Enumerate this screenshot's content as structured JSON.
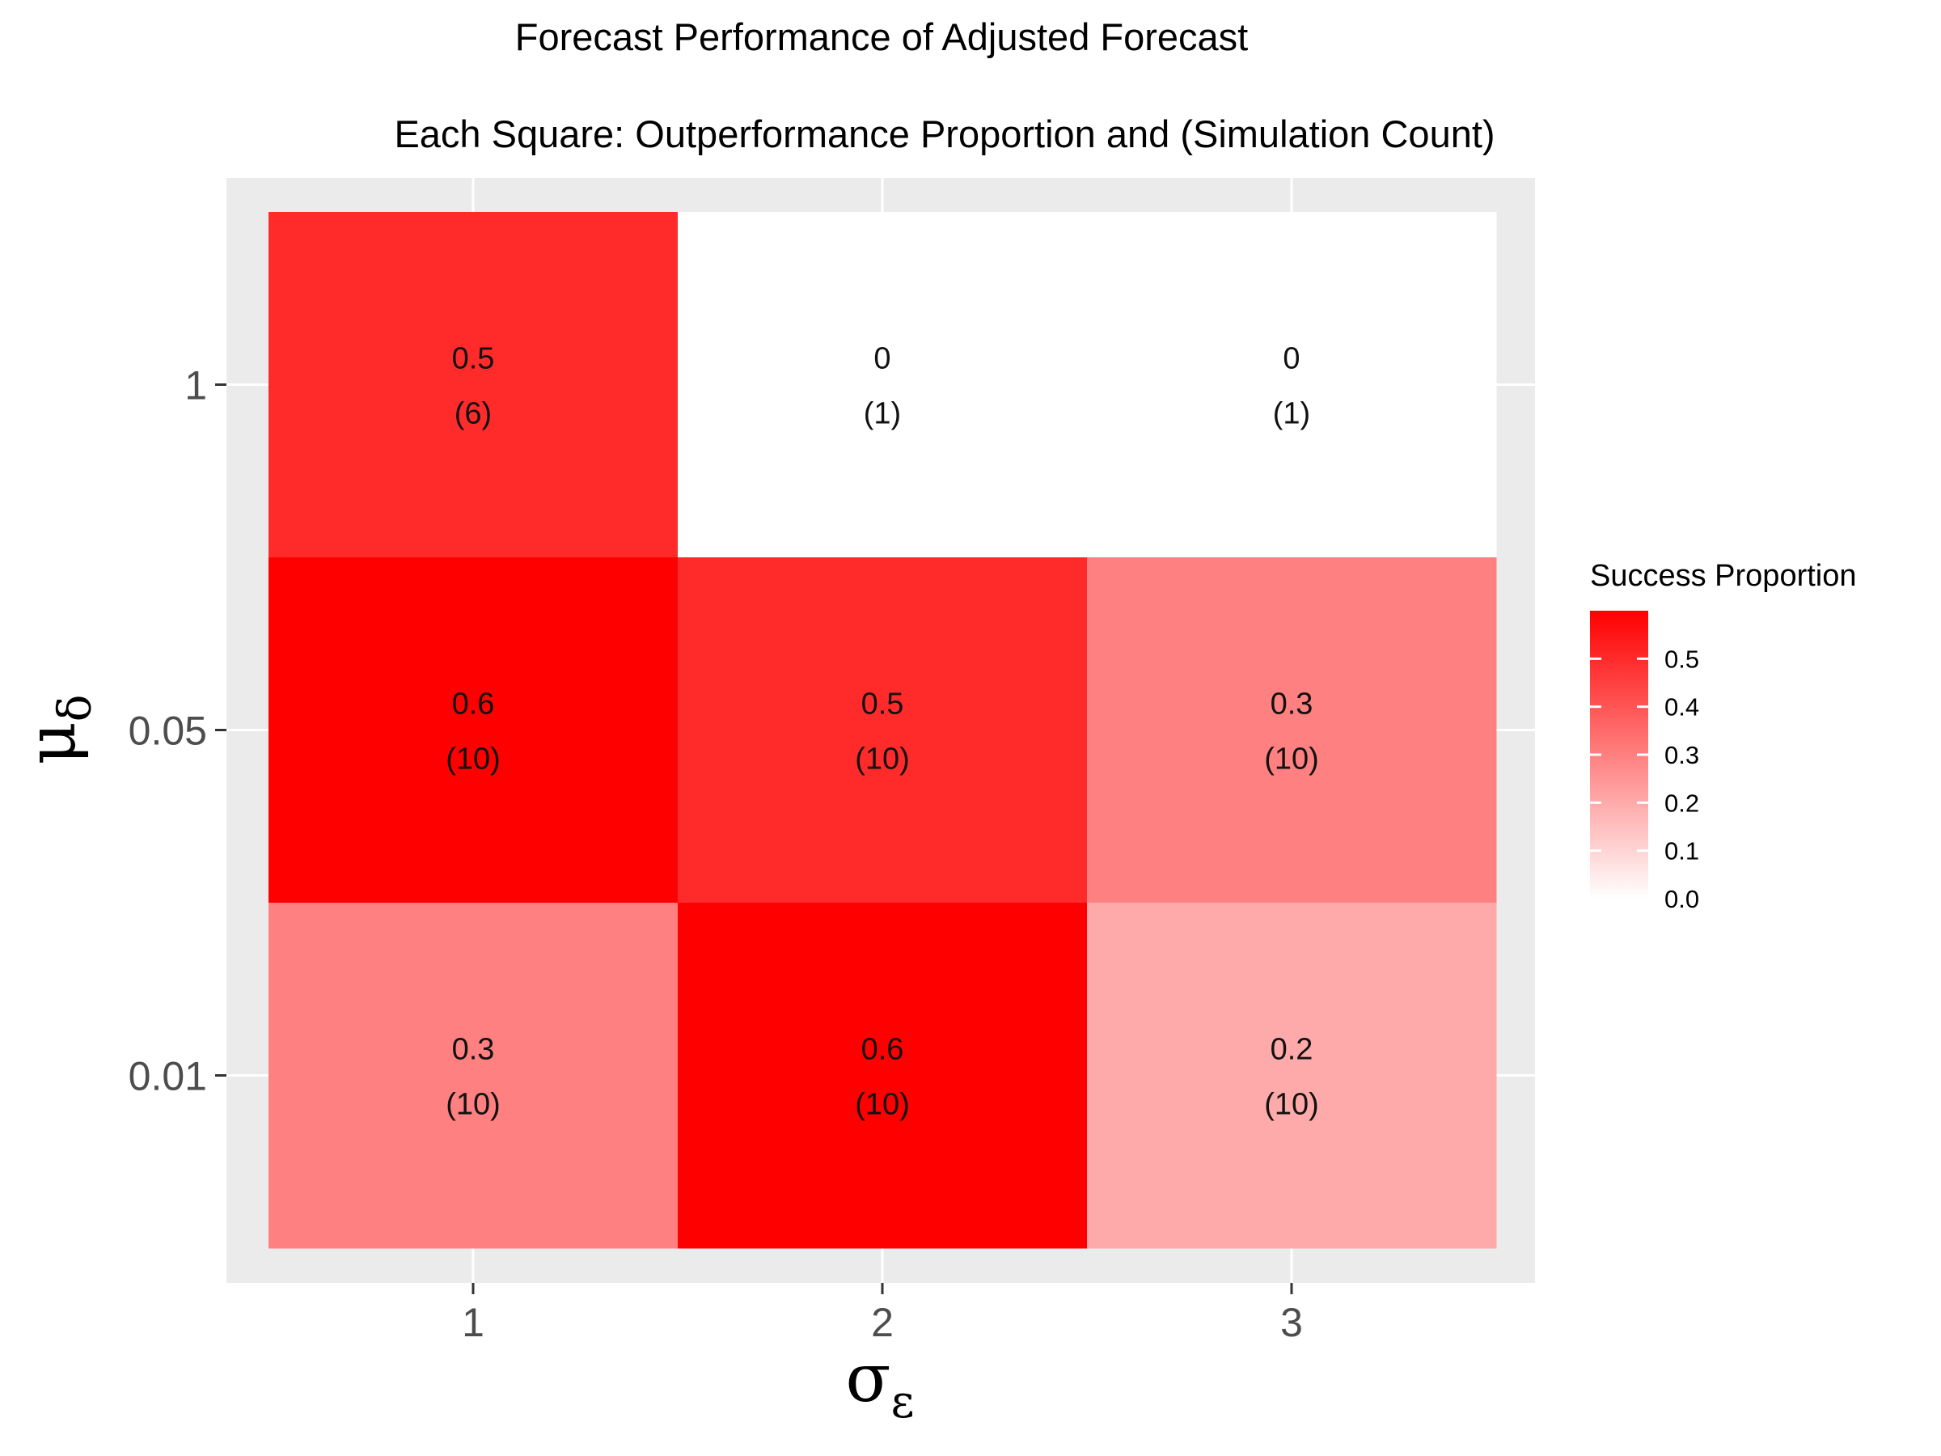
{
  "chart_data": {
    "type": "heatmap",
    "title": "Forecast Performance of Adjusted Forecast",
    "subtitle": "Each Square: Outperformance Proportion and (Simulation Count)",
    "xlabel": "σ",
    "xlabel_sub": "ε",
    "ylabel": "μ",
    "ylabel_sub": "δ",
    "x_categories": [
      "1",
      "2",
      "3"
    ],
    "y_categories": [
      "0.01",
      "0.05",
      "1"
    ],
    "cells": [
      {
        "x": "1",
        "y": "1",
        "value": 0.5,
        "label": "0.5",
        "count_label": "(6)"
      },
      {
        "x": "2",
        "y": "1",
        "value": 0.0,
        "label": "0",
        "count_label": "(1)"
      },
      {
        "x": "3",
        "y": "1",
        "value": 0.0,
        "label": "0",
        "count_label": "(1)"
      },
      {
        "x": "1",
        "y": "0.05",
        "value": 0.6,
        "label": "0.6",
        "count_label": "(10)"
      },
      {
        "x": "2",
        "y": "0.05",
        "value": 0.5,
        "label": "0.5",
        "count_label": "(10)"
      },
      {
        "x": "3",
        "y": "0.05",
        "value": 0.3,
        "label": "0.3",
        "count_label": "(10)"
      },
      {
        "x": "1",
        "y": "0.01",
        "value": 0.3,
        "label": "0.3",
        "count_label": "(10)"
      },
      {
        "x": "2",
        "y": "0.01",
        "value": 0.6,
        "label": "0.6",
        "count_label": "(10)"
      },
      {
        "x": "3",
        "y": "0.01",
        "value": 0.2,
        "label": "0.2",
        "count_label": "(10)"
      }
    ],
    "legend": {
      "title": "Success Proportion",
      "placement": "right",
      "min": 0.0,
      "max": 0.6,
      "ticks": [
        "0.0",
        "0.1",
        "0.2",
        "0.3",
        "0.4",
        "0.5"
      ],
      "low_color": "#ffffff",
      "high_color": "#ff0000"
    },
    "panel_color": "#ebebeb",
    "grid": true
  }
}
